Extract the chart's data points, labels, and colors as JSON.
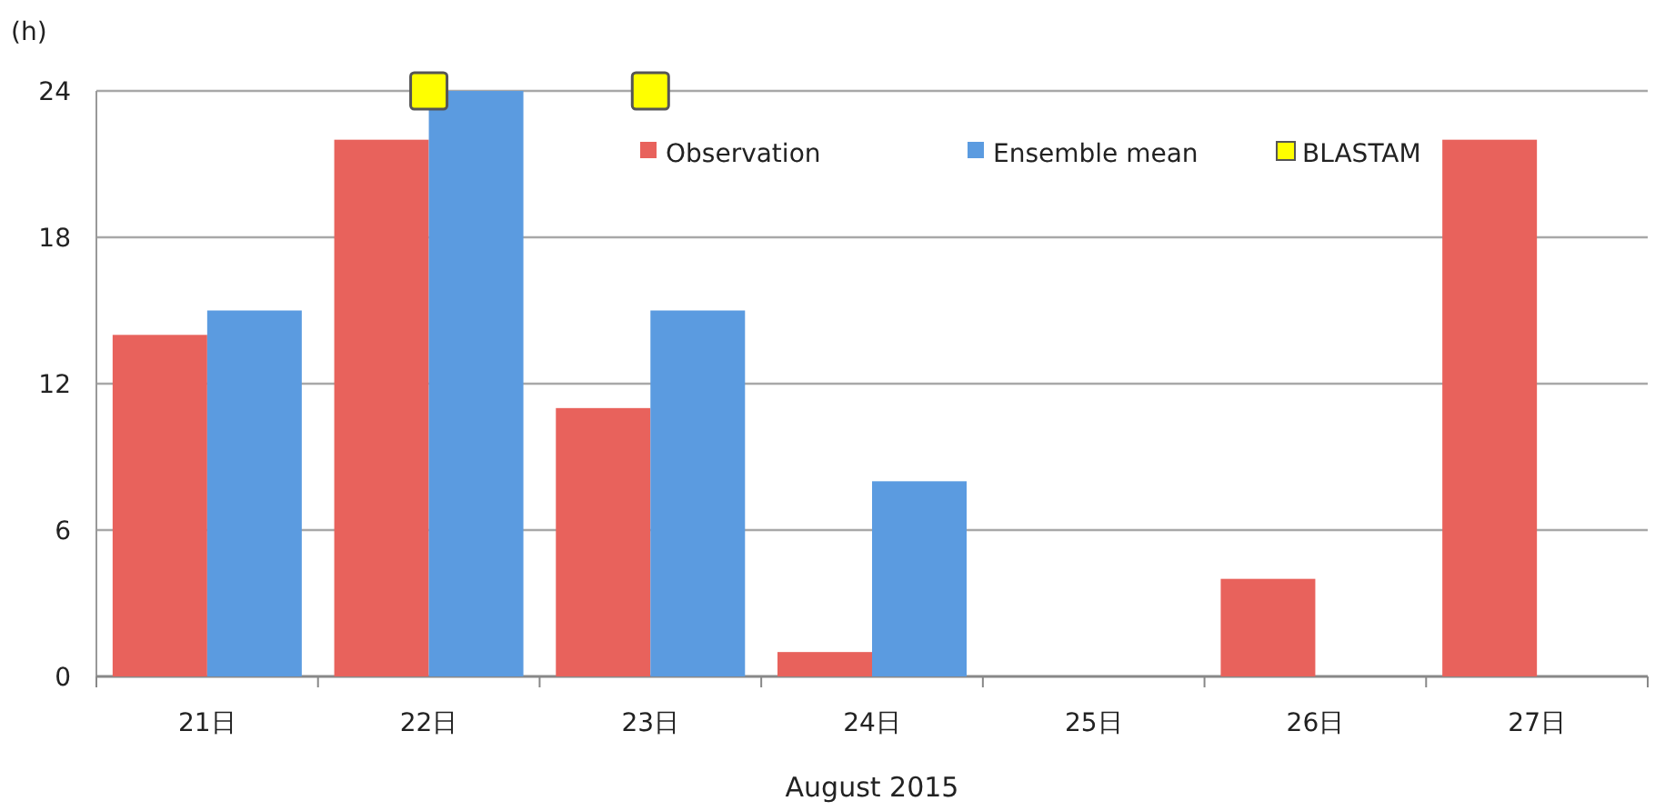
{
  "chart_data": {
    "type": "bar",
    "ylabel": "(h)",
    "xlabel": "August 2015",
    "categories": [
      "21日",
      "22日",
      "23日",
      "24日",
      "25日",
      "26日",
      "27日"
    ],
    "series": [
      {
        "name": "Observation",
        "color": "#e8625c",
        "values": [
          14,
          22,
          11,
          1,
          0,
          4,
          22
        ]
      },
      {
        "name": "Ensemble mean",
        "color": "#5b9be0",
        "values": [
          15,
          24,
          15,
          8,
          0,
          0,
          0
        ]
      },
      {
        "name": "BLASTAM",
        "type": "scatter",
        "marker": "square",
        "color": "#ffff00",
        "x": [
          "22日",
          "23日"
        ],
        "values": [
          24,
          24
        ]
      }
    ],
    "ylim": [
      0,
      24
    ],
    "yticks": [
      0,
      6,
      12,
      18,
      24
    ],
    "grid": "y",
    "legend": "top right"
  }
}
